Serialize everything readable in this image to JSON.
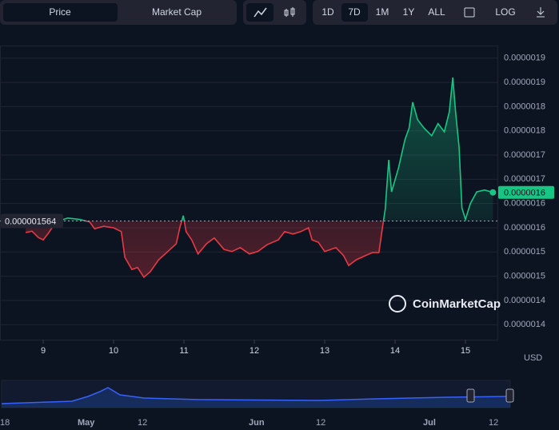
{
  "toolbar": {
    "tabs": [
      "Price",
      "Market Cap"
    ],
    "ranges": [
      "1D",
      "7D",
      "1M",
      "1Y",
      "ALL"
    ],
    "log": "LOG"
  },
  "chart_data": {
    "type": "line",
    "x": [
      8.75,
      8.84,
      8.93,
      9.0,
      9.07,
      9.14,
      9.24,
      9.35,
      9.52,
      9.66,
      9.73,
      9.86,
      10.0,
      10.11,
      10.16,
      10.26,
      10.34,
      10.43,
      10.52,
      10.64,
      10.77,
      10.89,
      10.94,
      10.99,
      11.03,
      11.11,
      11.2,
      11.32,
      11.43,
      11.57,
      11.68,
      11.8,
      11.93,
      12.05,
      12.18,
      12.34,
      12.43,
      12.55,
      12.66,
      12.77,
      12.82,
      12.91,
      13.0,
      13.16,
      13.27,
      13.34,
      13.45,
      13.57,
      13.68,
      13.77,
      13.82,
      13.86,
      13.91,
      13.95,
      14.05,
      14.14,
      14.2,
      14.25,
      14.32,
      14.41,
      14.52,
      14.61,
      14.7,
      14.77,
      14.82,
      14.86,
      14.91,
      14.95,
      15.0,
      15.07,
      15.16,
      15.27,
      15.39
    ],
    "series": [
      {
        "name": "Price",
        "color": "#16c784",
        "color_below": "#ea3943",
        "values": [
          1.54e-06,
          1.543e-06,
          1.53e-06,
          1.525e-06,
          1.538e-06,
          1.553e-06,
          1.565e-06,
          1.57e-06,
          1.567e-06,
          1.562e-06,
          1.548e-06,
          1.553e-06,
          1.55e-06,
          1.542e-06,
          1.489e-06,
          1.464e-06,
          1.468e-06,
          1.448e-06,
          1.459e-06,
          1.484e-06,
          1.501e-06,
          1.517e-06,
          1.55e-06,
          1.575e-06,
          1.542e-06,
          1.525e-06,
          1.496e-06,
          1.517e-06,
          1.529e-06,
          1.505e-06,
          1.501e-06,
          1.509e-06,
          1.496e-06,
          1.501e-06,
          1.515e-06,
          1.525e-06,
          1.542e-06,
          1.537e-06,
          1.542e-06,
          1.55e-06,
          1.525e-06,
          1.52e-06,
          1.501e-06,
          1.509e-06,
          1.492e-06,
          1.472e-06,
          1.484e-06,
          1.492e-06,
          1.499e-06,
          1.499e-06,
          1.55e-06,
          1.588e-06,
          1.69e-06,
          1.624e-06,
          1.674e-06,
          1.732e-06,
          1.756e-06,
          1.809e-06,
          1.773e-06,
          1.756e-06,
          1.74e-06,
          1.765e-06,
          1.748e-06,
          1.789e-06,
          1.86e-06,
          1.789e-06,
          1.715e-06,
          1.591e-06,
          1.567e-06,
          1.6e-06,
          1.624e-06,
          1.628e-06,
          1.623e-06
        ]
      }
    ],
    "baseline": 1.564e-06,
    "price_label": "0.0000016",
    "xlim": [
      8.386,
      15.454
    ],
    "xticks": [
      9,
      10,
      11,
      12,
      13,
      14,
      15
    ],
    "ylim": [
      1.319e-06,
      1.926e-06
    ],
    "yticks": [
      {
        "value": 1.35e-06,
        "label": "0.0000014"
      },
      {
        "value": 1.4e-06,
        "label": "0.0000014"
      },
      {
        "value": 1.45e-06,
        "label": "0.0000015"
      },
      {
        "value": 1.5e-06,
        "label": "0.0000015"
      },
      {
        "value": 1.55e-06,
        "label": "0.0000016"
      },
      {
        "value": 1.6e-06,
        "label": "0.0000016"
      },
      {
        "value": 1.65e-06,
        "label": "0.0000017"
      },
      {
        "value": 1.7e-06,
        "label": "0.0000017"
      },
      {
        "value": 1.75e-06,
        "label": "0.0000018"
      },
      {
        "value": 1.8e-06,
        "label": "0.0000018"
      },
      {
        "value": 1.85e-06,
        "label": "0.0000019"
      },
      {
        "value": 1.9e-06,
        "label": "0.0000019"
      }
    ],
    "grid": true,
    "currency": "USD",
    "watermark": "CoinMarketCap"
  },
  "navigator": {
    "labels": [
      "18",
      "May",
      "12",
      "Jun",
      "12",
      "Jul",
      "12"
    ]
  }
}
